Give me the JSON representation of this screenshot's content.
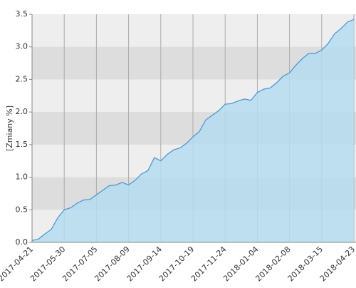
{
  "chart_data": {
    "type": "area",
    "y_label": "[Zmiany %]",
    "categories": [
      "2017-04-21",
      null,
      null,
      null,
      null,
      "2017-05-30",
      null,
      null,
      null,
      null,
      "2017-07-05",
      null,
      null,
      null,
      null,
      "2017-08-09",
      null,
      null,
      null,
      null,
      "2017-09-14",
      null,
      null,
      null,
      null,
      "2017-10-19",
      null,
      null,
      null,
      null,
      "2017-11-24",
      null,
      null,
      null,
      null,
      "2018-01-04",
      null,
      null,
      null,
      null,
      "2018-02-08",
      null,
      null,
      null,
      null,
      "2018-03-15",
      null,
      null,
      null,
      null,
      "2018-04-23"
    ],
    "values": [
      0.03,
      0.05,
      0.13,
      0.2,
      0.38,
      0.5,
      0.53,
      0.6,
      0.65,
      0.66,
      0.73,
      0.8,
      0.87,
      0.88,
      0.92,
      0.88,
      0.95,
      1.05,
      1.1,
      1.3,
      1.25,
      1.35,
      1.42,
      1.45,
      1.52,
      1.62,
      1.7,
      1.88,
      1.95,
      2.02,
      2.12,
      2.13,
      2.17,
      2.2,
      2.18,
      2.3,
      2.35,
      2.37,
      2.45,
      2.55,
      2.6,
      2.72,
      2.82,
      2.9,
      2.9,
      2.95,
      3.05,
      3.2,
      3.28,
      3.38,
      3.42
    ],
    "color": "#4a90d9",
    "fill": "#b5dcee",
    "ylim": [
      0,
      3.5
    ],
    "yticks": [
      {
        "value": 0,
        "label": "0.0"
      },
      0.5,
      {
        "value": 1,
        "label": "1.0"
      },
      1.5,
      {
        "value": 2,
        "label": "2.0"
      },
      2.5,
      {
        "value": 3,
        "label": "3.0"
      },
      3.5
    ],
    "grid": true
  }
}
